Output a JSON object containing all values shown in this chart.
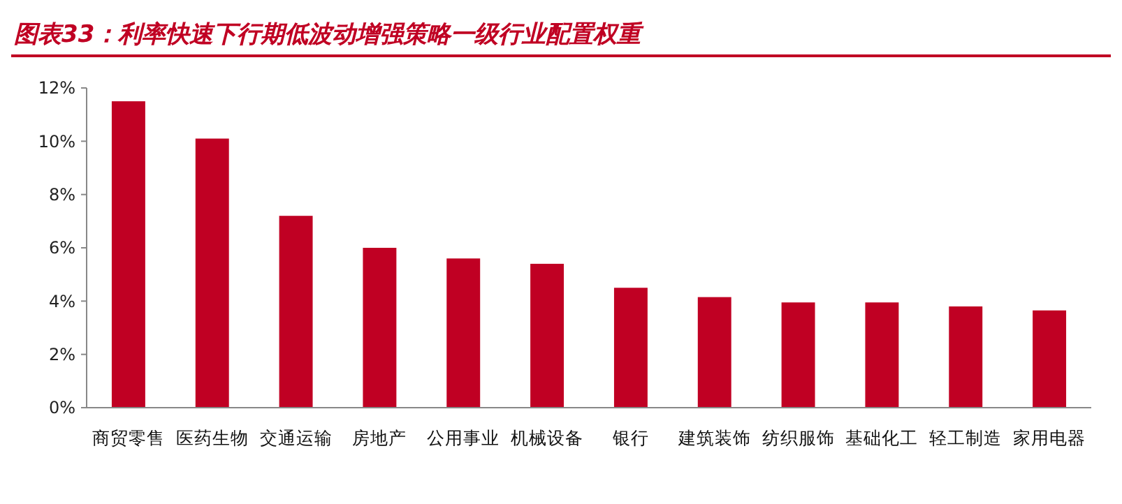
{
  "chart_data": {
    "type": "bar",
    "title": "图表33：利率快速下行期低波动增强策略一级行业配置权重",
    "categories": [
      "商贸零售",
      "医药生物",
      "交通运输",
      "房地产",
      "公用事业",
      "机械设备",
      "银行",
      "建筑装饰",
      "纺织服饰",
      "基础化工",
      "轻工制造",
      "家用电器"
    ],
    "values": [
      11.5,
      10.1,
      7.2,
      6.0,
      5.6,
      5.4,
      4.5,
      4.15,
      3.95,
      3.95,
      3.8,
      3.65
    ],
    "color": "#c00023",
    "ylim": [
      0,
      12
    ],
    "yticks": [
      {
        "value": 0,
        "label": "0%"
      },
      {
        "value": 2,
        "label": "2%"
      },
      {
        "value": 4,
        "label": "4%"
      },
      {
        "value": 6,
        "label": "6%"
      },
      {
        "value": 8,
        "label": "8%"
      },
      {
        "value": 10,
        "label": "10%"
      },
      {
        "value": 12,
        "label": "12%"
      }
    ],
    "grid": false
  }
}
